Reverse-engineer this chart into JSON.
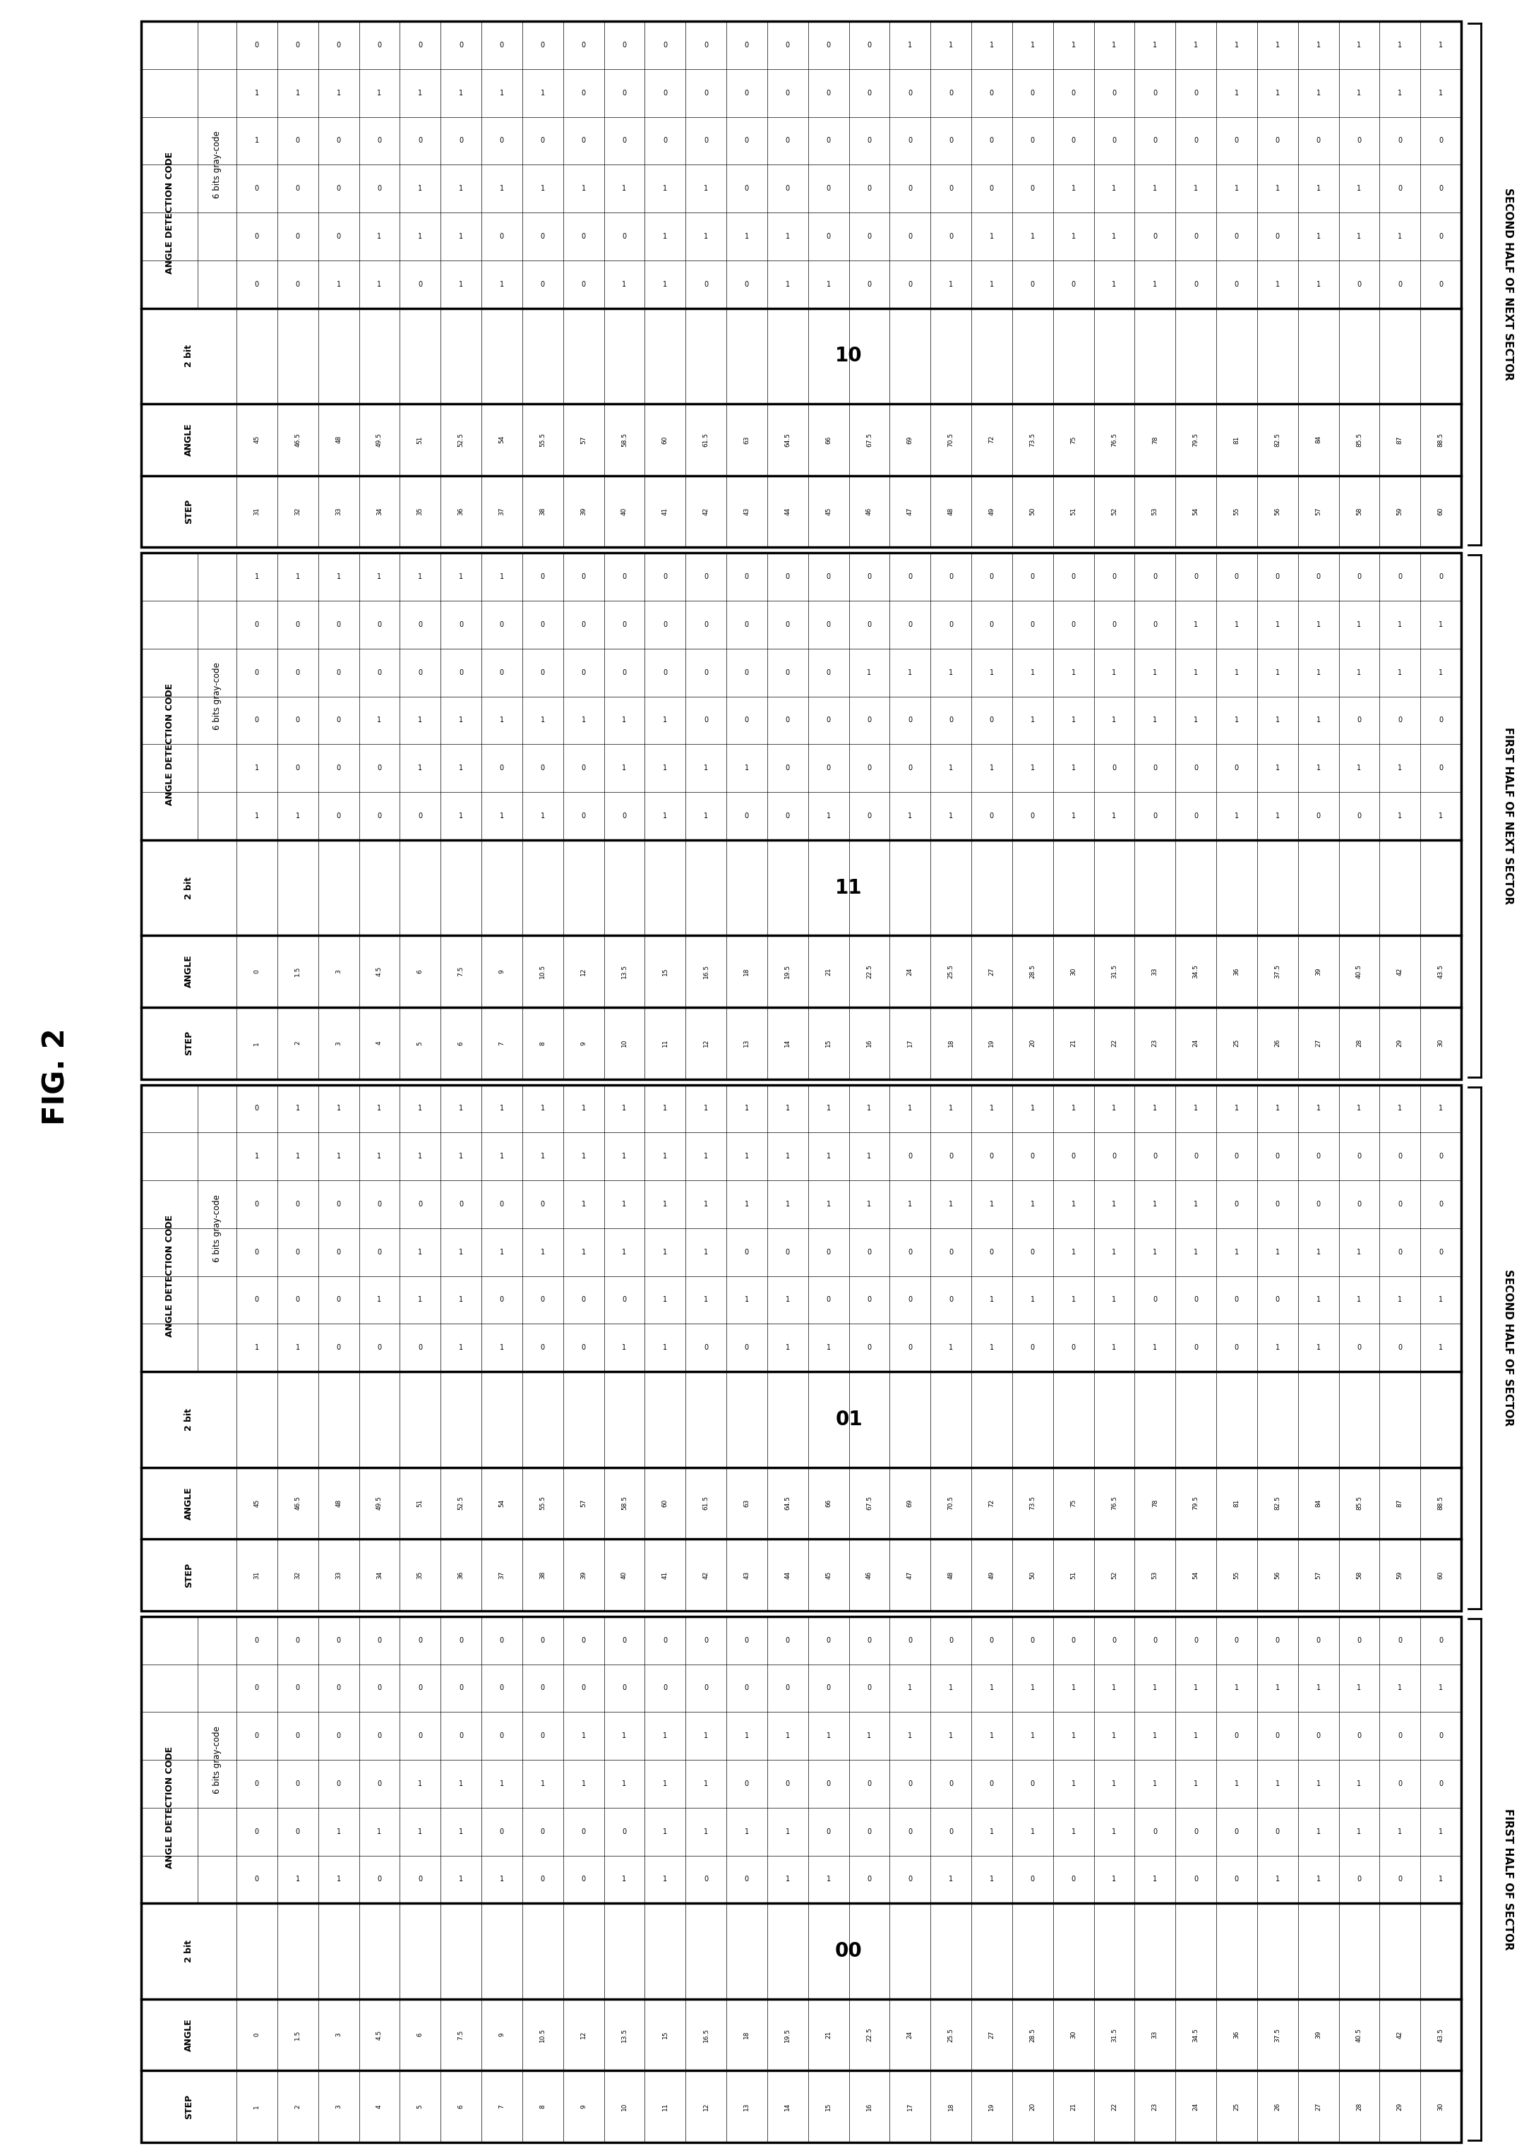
{
  "fig_label": "FIG. 2",
  "tables": [
    {
      "sector_label": "SECOND HALF OF NEXT SECTOR",
      "two_bit": "10",
      "steps": [
        31,
        32,
        33,
        34,
        35,
        36,
        37,
        38,
        39,
        40,
        41,
        42,
        43,
        44,
        45,
        46,
        47,
        48,
        49,
        50,
        51,
        52,
        53,
        54,
        55,
        56,
        57,
        58,
        59,
        60
      ],
      "angles": [
        "45",
        "46.5",
        "48",
        "49.5",
        "51",
        "52.5",
        "54",
        "55.5",
        "57",
        "58.5",
        "60",
        "61.5",
        "63",
        "64.5",
        "66",
        "67.5",
        "69",
        "70.5",
        "72",
        "73.5",
        "75",
        "76.5",
        "78",
        "79.5",
        "81",
        "82.5",
        "84",
        "85.5",
        "87",
        "88.5"
      ],
      "gray6": [
        [
          0,
          1,
          1,
          0,
          0,
          0
        ],
        [
          0,
          1,
          0,
          0,
          0,
          0
        ],
        [
          0,
          1,
          0,
          0,
          0,
          1
        ],
        [
          0,
          1,
          0,
          0,
          1,
          1
        ],
        [
          0,
          1,
          0,
          1,
          1,
          0
        ],
        [
          0,
          1,
          0,
          1,
          1,
          1
        ],
        [
          0,
          1,
          0,
          1,
          0,
          1
        ],
        [
          0,
          1,
          0,
          1,
          0,
          0
        ],
        [
          0,
          0,
          0,
          1,
          0,
          0
        ],
        [
          0,
          0,
          0,
          1,
          0,
          1
        ],
        [
          0,
          0,
          0,
          1,
          1,
          1
        ],
        [
          0,
          0,
          0,
          1,
          1,
          0
        ],
        [
          0,
          0,
          0,
          0,
          1,
          0
        ],
        [
          0,
          0,
          0,
          0,
          1,
          1
        ],
        [
          0,
          0,
          0,
          0,
          0,
          1
        ],
        [
          0,
          0,
          0,
          0,
          0,
          0
        ],
        [
          1,
          0,
          0,
          0,
          0,
          0
        ],
        [
          1,
          0,
          0,
          0,
          0,
          1
        ],
        [
          1,
          0,
          0,
          0,
          1,
          1
        ],
        [
          1,
          0,
          0,
          0,
          1,
          0
        ],
        [
          1,
          0,
          0,
          1,
          1,
          0
        ],
        [
          1,
          0,
          0,
          1,
          1,
          1
        ],
        [
          1,
          0,
          0,
          1,
          0,
          1
        ],
        [
          1,
          0,
          0,
          1,
          0,
          0
        ],
        [
          1,
          1,
          0,
          1,
          0,
          0
        ],
        [
          1,
          1,
          0,
          1,
          0,
          1
        ],
        [
          1,
          1,
          0,
          1,
          1,
          1
        ],
        [
          1,
          1,
          0,
          1,
          1,
          0
        ],
        [
          1,
          1,
          0,
          0,
          1,
          0
        ],
        [
          1,
          1,
          0,
          0,
          0,
          0
        ]
      ]
    },
    {
      "sector_label": "FIRST HALF OF NEXT SECTOR",
      "two_bit": "11",
      "steps": [
        1,
        2,
        3,
        4,
        5,
        6,
        7,
        8,
        9,
        10,
        11,
        12,
        13,
        14,
        15,
        16,
        17,
        18,
        19,
        20,
        21,
        22,
        23,
        24,
        25,
        26,
        27,
        28,
        29,
        30
      ],
      "angles": [
        "0",
        "1.5",
        "3",
        "4.5",
        "6",
        "7.5",
        "9",
        "10.5",
        "12",
        "13.5",
        "15",
        "16.5",
        "18",
        "19.5",
        "21",
        "22.5",
        "24",
        "25.5",
        "27",
        "28.5",
        "30",
        "31.5",
        "33",
        "34.5",
        "36",
        "37.5",
        "39",
        "40.5",
        "42",
        "43.5"
      ],
      "gray6": [
        [
          1,
          0,
          0,
          0,
          1,
          1
        ],
        [
          1,
          0,
          0,
          0,
          0,
          1
        ],
        [
          1,
          0,
          0,
          0,
          0,
          0
        ],
        [
          1,
          0,
          0,
          1,
          0,
          0
        ],
        [
          1,
          0,
          0,
          1,
          1,
          0
        ],
        [
          1,
          0,
          0,
          1,
          1,
          1
        ],
        [
          1,
          0,
          0,
          1,
          0,
          1
        ],
        [
          0,
          0,
          0,
          1,
          0,
          1
        ],
        [
          0,
          0,
          0,
          1,
          0,
          0
        ],
        [
          0,
          0,
          0,
          1,
          1,
          0
        ],
        [
          0,
          0,
          0,
          1,
          1,
          1
        ],
        [
          0,
          0,
          0,
          0,
          1,
          1
        ],
        [
          0,
          0,
          0,
          0,
          1,
          0
        ],
        [
          0,
          0,
          0,
          0,
          0,
          0
        ],
        [
          0,
          0,
          0,
          0,
          0,
          1
        ],
        [
          0,
          0,
          1,
          0,
          0,
          0
        ],
        [
          0,
          0,
          1,
          0,
          0,
          1
        ],
        [
          0,
          0,
          1,
          0,
          1,
          1
        ],
        [
          0,
          0,
          1,
          0,
          1,
          0
        ],
        [
          0,
          0,
          1,
          1,
          1,
          0
        ],
        [
          0,
          0,
          1,
          1,
          1,
          1
        ],
        [
          0,
          0,
          1,
          1,
          0,
          1
        ],
        [
          0,
          0,
          1,
          1,
          0,
          0
        ],
        [
          0,
          1,
          1,
          1,
          0,
          0
        ],
        [
          0,
          1,
          1,
          1,
          0,
          1
        ],
        [
          0,
          1,
          1,
          1,
          1,
          1
        ],
        [
          0,
          1,
          1,
          1,
          1,
          0
        ],
        [
          0,
          1,
          1,
          0,
          1,
          0
        ],
        [
          0,
          1,
          1,
          0,
          1,
          1
        ],
        [
          0,
          1,
          1,
          0,
          0,
          1
        ]
      ]
    },
    {
      "sector_label": "SECOND HALF OF SECTOR",
      "two_bit": "01",
      "steps": [
        31,
        32,
        33,
        34,
        35,
        36,
        37,
        38,
        39,
        40,
        41,
        42,
        43,
        44,
        45,
        46,
        47,
        48,
        49,
        50,
        51,
        52,
        53,
        54,
        55,
        56,
        57,
        58,
        59,
        60
      ],
      "angles": [
        "45",
        "46.5",
        "48",
        "49.5",
        "51",
        "52.5",
        "54",
        "55.5",
        "57",
        "58.5",
        "60",
        "61.5",
        "63",
        "64.5",
        "66",
        "67.5",
        "69",
        "70.5",
        "72",
        "73.5",
        "75",
        "76.5",
        "78",
        "79.5",
        "81",
        "82.5",
        "84",
        "85.5",
        "87",
        "88.5"
      ],
      "gray6": [
        [
          0,
          1,
          0,
          0,
          0,
          1
        ],
        [
          1,
          1,
          0,
          0,
          0,
          1
        ],
        [
          1,
          1,
          0,
          0,
          0,
          0
        ],
        [
          1,
          1,
          0,
          0,
          1,
          0
        ],
        [
          1,
          1,
          0,
          1,
          1,
          0
        ],
        [
          1,
          1,
          0,
          1,
          1,
          1
        ],
        [
          1,
          1,
          0,
          1,
          0,
          1
        ],
        [
          1,
          1,
          0,
          1,
          0,
          0
        ],
        [
          1,
          1,
          1,
          1,
          0,
          0
        ],
        [
          1,
          1,
          1,
          1,
          0,
          1
        ],
        [
          1,
          1,
          1,
          1,
          1,
          1
        ],
        [
          1,
          1,
          1,
          1,
          1,
          0
        ],
        [
          1,
          1,
          1,
          0,
          1,
          0
        ],
        [
          1,
          1,
          1,
          0,
          1,
          1
        ],
        [
          1,
          1,
          1,
          0,
          0,
          1
        ],
        [
          1,
          1,
          1,
          0,
          0,
          0
        ],
        [
          1,
          0,
          1,
          0,
          0,
          0
        ],
        [
          1,
          0,
          1,
          0,
          0,
          1
        ],
        [
          1,
          0,
          1,
          0,
          1,
          1
        ],
        [
          1,
          0,
          1,
          0,
          1,
          0
        ],
        [
          1,
          0,
          1,
          1,
          1,
          0
        ],
        [
          1,
          0,
          1,
          1,
          1,
          1
        ],
        [
          1,
          0,
          1,
          1,
          0,
          1
        ],
        [
          1,
          0,
          1,
          1,
          0,
          0
        ],
        [
          1,
          0,
          0,
          1,
          0,
          0
        ],
        [
          1,
          0,
          0,
          1,
          0,
          1
        ],
        [
          1,
          0,
          0,
          1,
          1,
          1
        ],
        [
          1,
          0,
          0,
          1,
          1,
          0
        ],
        [
          1,
          0,
          0,
          0,
          1,
          0
        ],
        [
          1,
          0,
          0,
          0,
          1,
          1
        ]
      ]
    },
    {
      "sector_label": "FIRST HALF OF SECTOR",
      "two_bit": "00",
      "steps": [
        1,
        2,
        3,
        4,
        5,
        6,
        7,
        8,
        9,
        10,
        11,
        12,
        13,
        14,
        15,
        16,
        17,
        18,
        19,
        20,
        21,
        22,
        23,
        24,
        25,
        26,
        27,
        28,
        29,
        30
      ],
      "angles": [
        "0",
        "1.5",
        "3",
        "4.5",
        "6",
        "7.5",
        "9",
        "10.5",
        "12",
        "13.5",
        "15",
        "16.5",
        "18",
        "19.5",
        "21",
        "22.5",
        "24",
        "25.5",
        "27",
        "28.5",
        "30",
        "31.5",
        "33",
        "34.5",
        "36",
        "37.5",
        "39",
        "40.5",
        "42",
        "43.5"
      ],
      "gray6": [
        [
          0,
          0,
          0,
          0,
          0,
          0
        ],
        [
          0,
          0,
          0,
          0,
          0,
          1
        ],
        [
          0,
          0,
          0,
          0,
          1,
          1
        ],
        [
          0,
          0,
          0,
          0,
          1,
          0
        ],
        [
          0,
          0,
          0,
          1,
          1,
          0
        ],
        [
          0,
          0,
          0,
          1,
          1,
          1
        ],
        [
          0,
          0,
          0,
          1,
          0,
          1
        ],
        [
          0,
          0,
          0,
          1,
          0,
          0
        ],
        [
          0,
          0,
          1,
          1,
          0,
          0
        ],
        [
          0,
          0,
          1,
          1,
          0,
          1
        ],
        [
          0,
          0,
          1,
          1,
          1,
          1
        ],
        [
          0,
          0,
          1,
          1,
          1,
          0
        ],
        [
          0,
          0,
          1,
          0,
          1,
          0
        ],
        [
          0,
          0,
          1,
          0,
          1,
          1
        ],
        [
          0,
          0,
          1,
          0,
          0,
          1
        ],
        [
          0,
          0,
          1,
          0,
          0,
          0
        ],
        [
          0,
          1,
          1,
          0,
          0,
          0
        ],
        [
          0,
          1,
          1,
          0,
          0,
          1
        ],
        [
          0,
          1,
          1,
          0,
          1,
          1
        ],
        [
          0,
          1,
          1,
          0,
          1,
          0
        ],
        [
          0,
          1,
          1,
          1,
          1,
          0
        ],
        [
          0,
          1,
          1,
          1,
          1,
          1
        ],
        [
          0,
          1,
          1,
          1,
          0,
          1
        ],
        [
          0,
          1,
          1,
          1,
          0,
          0
        ],
        [
          0,
          1,
          0,
          1,
          0,
          0
        ],
        [
          0,
          1,
          0,
          1,
          0,
          1
        ],
        [
          0,
          1,
          0,
          1,
          1,
          1
        ],
        [
          0,
          1,
          0,
          1,
          1,
          0
        ],
        [
          0,
          1,
          0,
          0,
          1,
          0
        ],
        [
          0,
          1,
          0,
          0,
          1,
          1
        ]
      ]
    }
  ]
}
